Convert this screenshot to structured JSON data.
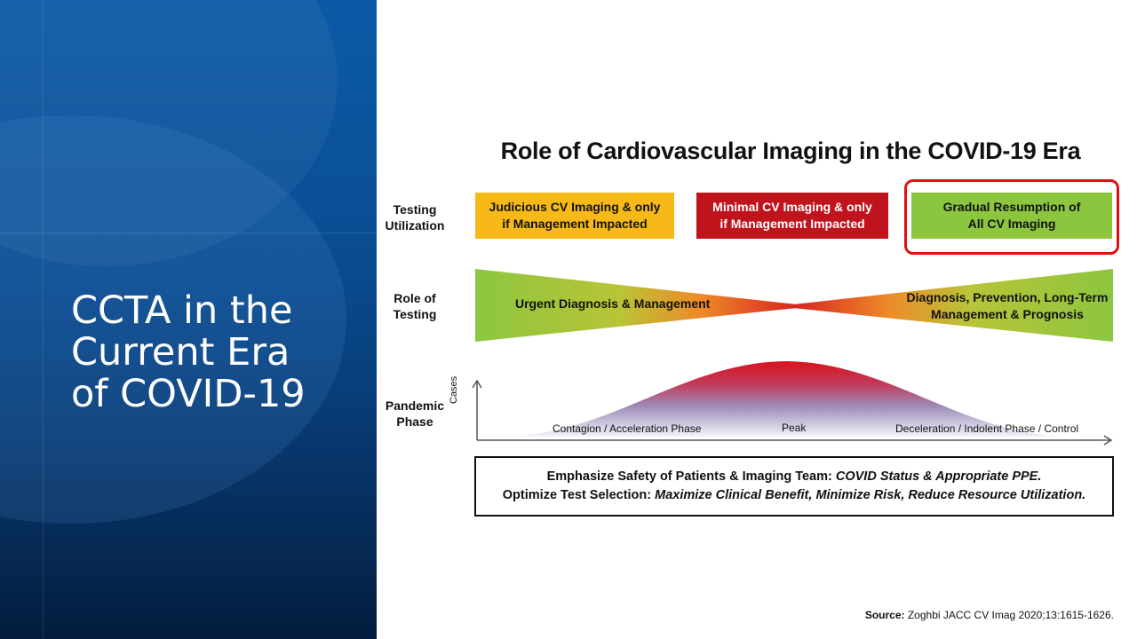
{
  "slide": {
    "title_lines": [
      "CCTA in the",
      "Current Era",
      "of COVID-19"
    ]
  },
  "figure": {
    "title": "Role of Cardiovascular Imaging in the COVID-19 Era",
    "rows": {
      "testing_utilization": [
        "Testing",
        "Utilization"
      ],
      "role_of_testing": [
        "Role of",
        "Testing"
      ],
      "pandemic_phase": [
        "Pandemic",
        "Phase"
      ]
    },
    "boxes": {
      "judicious": [
        "Judicious CV Imaging & only",
        "if Management Impacted"
      ],
      "minimal": [
        "Minimal CV Imaging & only",
        "if Management Impacted"
      ],
      "gradual": [
        "Gradual Resumption of",
        "All CV Imaging"
      ]
    },
    "role": {
      "left": "Urgent Diagnosis & Management",
      "right": [
        "Diagnosis, Prevention, Long-Term",
        "Management & Prognosis"
      ]
    },
    "pandemic": {
      "y_axis": "Cases",
      "phases": {
        "contagion": "Contagion / Acceleration Phase",
        "peak": "Peak",
        "deceleration": "Deceleration / Indolent Phase / Control"
      }
    },
    "summary": {
      "line1_bold": "Emphasize Safety of Patients & Imaging Team: ",
      "line1_italic": "COVID Status & Appropriate PPE.",
      "line2_bold": "Optimize Test Selection: ",
      "line2_italic": "Maximize Clinical Benefit, Minimize Risk, Reduce Resource Utilization."
    },
    "colors": {
      "yellow": "#f6b918",
      "red": "#c0141d",
      "green": "#8cc63f",
      "highlight": "#e01010"
    }
  },
  "source": {
    "label": "Source:",
    "citation": " Zoghbi JACC CV Imag 2020;13:1615-1626."
  }
}
